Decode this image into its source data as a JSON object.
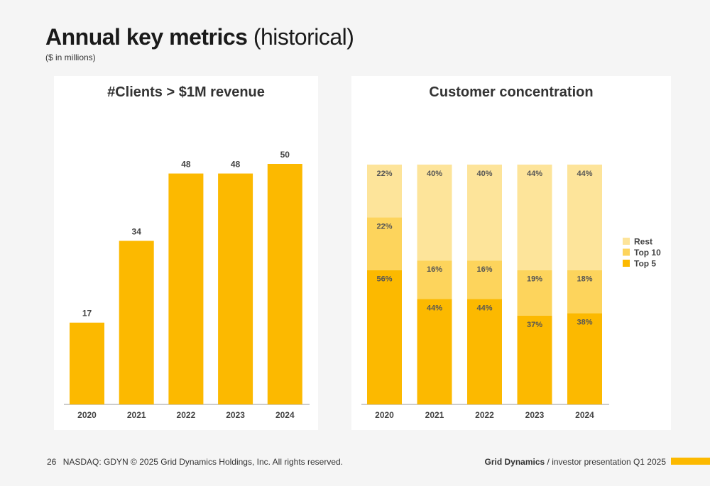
{
  "header": {
    "title_bold": "Annual key metrics",
    "title_rest": "(historical)",
    "subtitle": "($ in millions)"
  },
  "colors": {
    "accent": "#fcb900",
    "top10": "#fdd45c",
    "rest": "#fde49a"
  },
  "chart_data": [
    {
      "type": "bar",
      "title": "#Clients > $1M revenue",
      "categories": [
        "2020",
        "2021",
        "2022",
        "2023",
        "2024"
      ],
      "values": [
        17,
        34,
        48,
        48,
        50
      ],
      "data_labels": [
        "17",
        "34",
        "48",
        "48",
        "50"
      ],
      "ylim": [
        0,
        52
      ],
      "grid": false,
      "color": "#fcb900"
    },
    {
      "type": "bar",
      "stacked": true,
      "title": "Customer concentration",
      "categories": [
        "2020",
        "2021",
        "2022",
        "2023",
        "2024"
      ],
      "series": [
        {
          "name": "Top 5",
          "values": [
            56,
            44,
            44,
            37,
            38
          ],
          "labels": [
            "56%",
            "44%",
            "44%",
            "37%",
            "38%"
          ],
          "color": "#fcb900"
        },
        {
          "name": "Top 10",
          "values": [
            22,
            16,
            16,
            19,
            18
          ],
          "labels": [
            "22%",
            "16%",
            "16%",
            "19%",
            "18%"
          ],
          "color": "#fdd45c"
        },
        {
          "name": "Rest",
          "values": [
            22,
            40,
            40,
            44,
            44
          ],
          "labels": [
            "22%",
            "40%",
            "40%",
            "44%",
            "44%"
          ],
          "color": "#fde49a"
        }
      ],
      "legend": [
        "Rest",
        "Top 10",
        "Top 5"
      ],
      "legend_position": "right",
      "ylim": [
        0,
        100
      ],
      "grid": false
    }
  ],
  "footer": {
    "page_number": "26",
    "copyright": "NASDAQ: GDYN © 2025 Grid Dynamics Holdings, Inc. All rights reserved.",
    "brand": "Grid Dynamics",
    "separator": "/",
    "doc_title": "investor presentation Q1 2025"
  }
}
